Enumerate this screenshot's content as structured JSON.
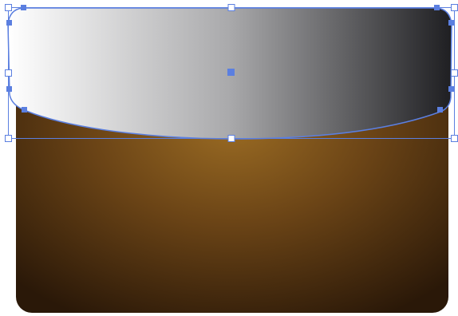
{
  "canvas": {
    "background": "#ffffff"
  },
  "artwork": {
    "base_shape": {
      "kind": "rounded-rectangle",
      "fill": "radial-gradient",
      "colors": {
        "center": "#9a6b23",
        "mid": "#6b4416",
        "edge": "#2a1808"
      }
    },
    "overlay_shape": {
      "kind": "curved-flap",
      "fill": "linear-gradient",
      "colors": {
        "start": "#ffffff",
        "mid": "#a9a9ab",
        "end": "#1f1f22"
      },
      "state": "selected"
    }
  },
  "selection": {
    "color": "#5b7fe0",
    "handle_fill": "#ffffff",
    "anchor_fill": "#5b7fe0",
    "bounding_box_handles": [
      "top-left",
      "top-center",
      "top-right",
      "middle-left",
      "middle-right",
      "bottom-left",
      "bottom-center",
      "bottom-right"
    ],
    "center_point": "center-icon"
  }
}
